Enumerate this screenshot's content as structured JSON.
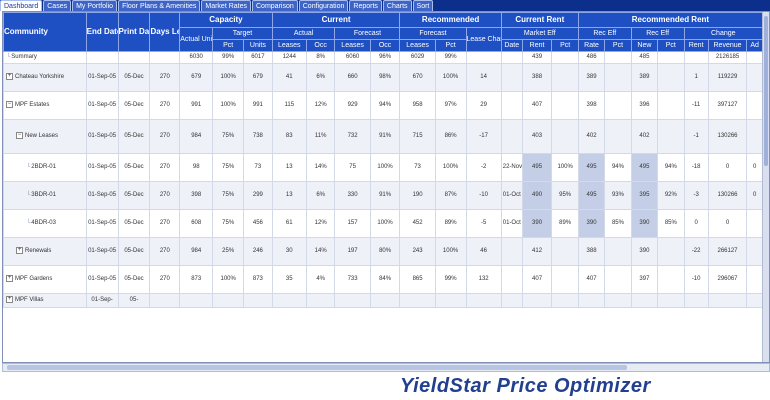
{
  "tabs": [
    "Dashboard",
    "Cases",
    "My Portfolio",
    "Floor Plans & Amenities",
    "Market Rates",
    "Comparison",
    "Configuration",
    "Reports",
    "Charts",
    "Sort"
  ],
  "active_tab": 0,
  "columns": {
    "community": "Community",
    "end_date": "End Date",
    "print_date": "Print Date",
    "days_left": "Days Left",
    "capacity": "Capacity",
    "current": "Current",
    "recommended": "Recommended",
    "current_rent": "Current Rent",
    "recommended_rent": "Recommended Rent",
    "actual_units": "Actual Units",
    "target": "Target",
    "actual": "Actual",
    "forecast": "Forecast",
    "forecast2": "Forecast",
    "lease_change": "Lease Change",
    "market_eff": "Market Eff",
    "recent_eff": "Rec Eff",
    "rec_eff": "Rec Eff",
    "change": "Change",
    "pct": "Pct",
    "units": "Units",
    "leases": "Leases",
    "occ": "Occ",
    "date": "Date",
    "rent": "Rent",
    "revenue": "Revenue",
    "ad": "Ad",
    "rate": "Rate",
    "new": "New"
  },
  "rows": [
    {
      "name": "Summary",
      "tree": "none",
      "indent": 0,
      "end": "",
      "print": "",
      "days": "",
      "actual_units": "6030",
      "target_pct": "99%",
      "target_units": "6017",
      "cur_leases": "1244",
      "cur_occ": "8%",
      "fc_leases": "6060",
      "fc_occ": "96%",
      "rec_leases": "6029",
      "rec_pct": "99%",
      "lease_change": "",
      "cr_date": "",
      "cr_rent": "439",
      "cr_pct": "",
      "rc_rate": "486",
      "rc_pct": "",
      "rc_new": "485",
      "rc_new_pct": "",
      "ch_rent": "",
      "ch_rev": "2126185",
      "ch_ad": "",
      "shaded": false
    },
    {
      "name": "Chateau Yorkshire",
      "tree": "plus",
      "indent": 0,
      "end": "01-Sep-05",
      "print": "05-Dec",
      "days": "270",
      "actual_units": "679",
      "target_pct": "100%",
      "target_units": "679",
      "cur_leases": "41",
      "cur_occ": "6%",
      "fc_leases": "660",
      "fc_occ": "98%",
      "rec_leases": "670",
      "rec_pct": "100%",
      "lease_change": "14",
      "cr_date": "",
      "cr_rent": "388",
      "cr_pct": "",
      "rc_rate": "389",
      "rc_pct": "",
      "rc_new": "389",
      "rc_new_pct": "",
      "ch_rent": "1",
      "ch_rev": "119229",
      "ch_ad": "",
      "shaded": true
    },
    {
      "name": "MPF Estates",
      "tree": "minus",
      "indent": 0,
      "end": "01-Sep-05",
      "print": "05-Dec",
      "days": "270",
      "actual_units": "991",
      "target_pct": "100%",
      "target_units": "991",
      "cur_leases": "115",
      "cur_occ": "12%",
      "fc_leases": "929",
      "fc_occ": "94%",
      "rec_leases": "958",
      "rec_pct": "97%",
      "lease_change": "29",
      "cr_date": "",
      "cr_rent": "407",
      "cr_pct": "",
      "rc_rate": "398",
      "rc_pct": "",
      "rc_new": "396",
      "rc_new_pct": "",
      "ch_rent": "-11",
      "ch_rev": "397127",
      "ch_ad": "",
      "shaded": false
    },
    {
      "name": "New Leases",
      "tree": "minus",
      "indent": 1,
      "end": "01-Sep-05",
      "print": "05-Dec",
      "days": "270",
      "actual_units": "984",
      "target_pct": "75%",
      "target_units": "738",
      "cur_leases": "83",
      "cur_occ": "11%",
      "fc_leases": "732",
      "fc_occ": "91%",
      "rec_leases": "715",
      "rec_pct": "86%",
      "lease_change": "-17",
      "cr_date": "",
      "cr_rent": "403",
      "cr_pct": "",
      "rc_rate": "402",
      "rc_pct": "",
      "rc_new": "402",
      "rc_new_pct": "",
      "ch_rent": "-1",
      "ch_rev": "130266",
      "ch_ad": "",
      "shaded": true
    },
    {
      "name": "2BDR-01",
      "tree": "leaf",
      "indent": 2,
      "end": "01-Sep-05",
      "print": "05-Dec",
      "days": "270",
      "actual_units": "98",
      "target_pct": "75%",
      "target_units": "73",
      "cur_leases": "13",
      "cur_occ": "14%",
      "fc_leases": "75",
      "fc_occ": "100%",
      "rec_leases": "73",
      "rec_pct": "100%",
      "lease_change": "-2",
      "cr_date": "22-Nov",
      "cr_rent": "495",
      "cr_pct": "100%",
      "rc_rate": "495",
      "rc_pct": "94%",
      "rc_new": "495",
      "rc_new_pct": "94%",
      "ch_rent": "-18",
      "ch_rev": "0",
      "ch_ad": "0",
      "shaded": false,
      "hl": true
    },
    {
      "name": "3BDR-01",
      "tree": "leaf",
      "indent": 2,
      "end": "01-Sep-05",
      "print": "05-Dec",
      "days": "270",
      "actual_units": "398",
      "target_pct": "75%",
      "target_units": "299",
      "cur_leases": "13",
      "cur_occ": "6%",
      "fc_leases": "330",
      "fc_occ": "91%",
      "rec_leases": "190",
      "rec_pct": "87%",
      "lease_change": "-10",
      "cr_date": "01-Oct",
      "cr_rent": "490",
      "cr_pct": "95%",
      "rc_rate": "495",
      "rc_pct": "93%",
      "rc_new": "395",
      "rc_new_pct": "92%",
      "ch_rent": "-3",
      "ch_rev": "130266",
      "ch_ad": "0",
      "shaded": true,
      "hl": true
    },
    {
      "name": "4BDR-03",
      "tree": "leaf",
      "indent": 2,
      "end": "01-Sep-05",
      "print": "05-Dec",
      "days": "270",
      "actual_units": "608",
      "target_pct": "75%",
      "target_units": "456",
      "cur_leases": "61",
      "cur_occ": "12%",
      "fc_leases": "157",
      "fc_occ": "100%",
      "rec_leases": "452",
      "rec_pct": "89%",
      "lease_change": "-5",
      "cr_date": "01-Oct",
      "cr_rent": "390",
      "cr_pct": "89%",
      "rc_rate": "390",
      "rc_pct": "85%",
      "rc_new": "390",
      "rc_new_pct": "85%",
      "ch_rent": "0",
      "ch_rev": "0",
      "ch_ad": "",
      "shaded": false,
      "hl": true
    },
    {
      "name": "Renewals",
      "tree": "plus",
      "indent": 1,
      "end": "01-Sep-05",
      "print": "05-Dec",
      "days": "270",
      "actual_units": "984",
      "target_pct": "25%",
      "target_units": "246",
      "cur_leases": "30",
      "cur_occ": "14%",
      "fc_leases": "197",
      "fc_occ": "80%",
      "rec_leases": "243",
      "rec_pct": "100%",
      "lease_change": "46",
      "cr_date": "",
      "cr_rent": "412",
      "cr_pct": "",
      "rc_rate": "388",
      "rc_pct": "",
      "rc_new": "390",
      "rc_new_pct": "",
      "ch_rent": "-22",
      "ch_rev": "266127",
      "ch_ad": "",
      "shaded": true
    },
    {
      "name": "MPF Gardens",
      "tree": "plus",
      "indent": 0,
      "end": "01-Sep-05",
      "print": "05-Dec",
      "days": "270",
      "actual_units": "873",
      "target_pct": "100%",
      "target_units": "873",
      "cur_leases": "35",
      "cur_occ": "4%",
      "fc_leases": "733",
      "fc_occ": "84%",
      "rec_leases": "865",
      "rec_pct": "99%",
      "lease_change": "132",
      "cr_date": "",
      "cr_rent": "407",
      "cr_pct": "",
      "rc_rate": "407",
      "rc_pct": "",
      "rc_new": "397",
      "rc_new_pct": "",
      "ch_rent": "-10",
      "ch_rev": "296067",
      "ch_ad": "",
      "shaded": false
    },
    {
      "name": "MPF Villas",
      "tree": "plus",
      "indent": 0,
      "end": "01-Sep-",
      "print": "05-",
      "days": "",
      "actual_units": "",
      "target_pct": "",
      "target_units": "",
      "cur_leases": "",
      "cur_occ": "",
      "fc_leases": "",
      "fc_occ": "",
      "rec_leases": "",
      "rec_pct": "",
      "lease_change": "",
      "cr_date": "",
      "cr_rent": "",
      "cr_pct": "",
      "rc_rate": "",
      "rc_pct": "",
      "rc_new": "",
      "rc_new_pct": "",
      "ch_rent": "",
      "ch_rev": "",
      "ch_ad": "",
      "shaded": true
    }
  ],
  "brand": "YieldStar Price Optimizer"
}
